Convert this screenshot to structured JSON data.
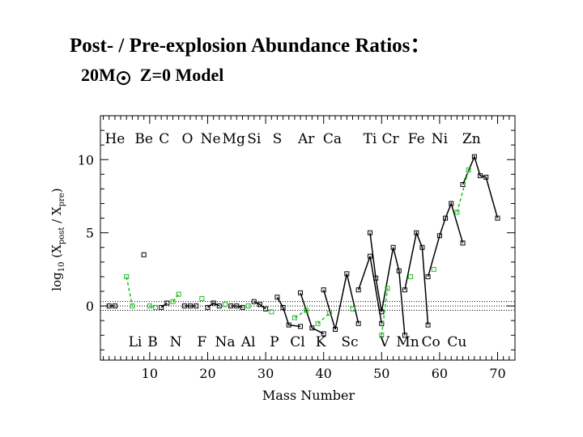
{
  "slide": {
    "title": "Post- / Pre-explosion Abundance Ratios：",
    "subtitle_prefix": "20M",
    "subtitle_suffix": "Z=0 Model"
  },
  "chart_data": {
    "type": "line",
    "xlabel": "Mass Number",
    "ylabel": "log10 (X_post / X_pre)",
    "xlim": [
      1.5,
      73
    ],
    "ylim": [
      -3.7,
      13
    ],
    "xticks": [
      10,
      20,
      30,
      40,
      50,
      60,
      70
    ],
    "yticks": [
      0,
      5,
      10
    ],
    "reference_lines_y": [
      -0.3,
      0,
      0.3
    ],
    "colors": {
      "even_z": "#000000",
      "odd_z": "#22bb22"
    },
    "even_z_labels": [
      {
        "text": "He",
        "x": 4
      },
      {
        "text": "Be",
        "x": 9
      },
      {
        "text": "C",
        "x": 12.5
      },
      {
        "text": "O",
        "x": 16.5
      },
      {
        "text": "Ne",
        "x": 20.5
      },
      {
        "text": "Mg",
        "x": 24.5
      },
      {
        "text": "Si",
        "x": 28
      },
      {
        "text": "S",
        "x": 32
      },
      {
        "text": "Ar",
        "x": 37
      },
      {
        "text": "Ca",
        "x": 41.5
      },
      {
        "text": "Ti",
        "x": 48
      },
      {
        "text": "Cr",
        "x": 51.5
      },
      {
        "text": "Fe",
        "x": 56
      },
      {
        "text": "Ni",
        "x": 60
      },
      {
        "text": "Zn",
        "x": 65.5
      }
    ],
    "odd_z_labels": [
      {
        "text": "Li",
        "x": 7.5
      },
      {
        "text": "B",
        "x": 10.5
      },
      {
        "text": "N",
        "x": 14.5
      },
      {
        "text": "F",
        "x": 19
      },
      {
        "text": "Na",
        "x": 23
      },
      {
        "text": "Al",
        "x": 27
      },
      {
        "text": "P",
        "x": 31.5
      },
      {
        "text": "Cl",
        "x": 35.5
      },
      {
        "text": "K",
        "x": 39.5
      },
      {
        "text": "Sc",
        "x": 44.5
      },
      {
        "text": "V",
        "x": 50.5
      },
      {
        "text": "Mn",
        "x": 54.5
      },
      {
        "text": "Co",
        "x": 58.5
      },
      {
        "text": "Cu",
        "x": 63
      }
    ],
    "series": [
      {
        "color": "#000000",
        "dash": "none",
        "segments": [
          [
            [
              3,
              0
            ],
            [
              4,
              0
            ]
          ],
          [
            [
              9,
              3.5
            ]
          ],
          [
            [
              12,
              -0.1
            ],
            [
              13,
              0.2
            ]
          ],
          [
            [
              16,
              0
            ],
            [
              17,
              0
            ],
            [
              18,
              0
            ]
          ],
          [
            [
              20,
              -0.1
            ],
            [
              21,
              0.2
            ],
            [
              22,
              0
            ]
          ],
          [
            [
              24,
              0
            ],
            [
              25,
              0
            ],
            [
              26,
              -0.1
            ]
          ],
          [
            [
              28,
              0.3
            ],
            [
              29,
              0.1
            ],
            [
              30,
              -0.2
            ]
          ],
          [
            [
              32,
              0.6
            ],
            [
              33,
              -0.1
            ],
            [
              34,
              -1.3
            ],
            [
              36,
              -1.4
            ]
          ],
          [
            [
              36,
              0.9
            ],
            [
              38,
              -1.5
            ],
            [
              40,
              -1.9
            ]
          ],
          [
            [
              40,
              1.1
            ],
            [
              42,
              -1.6
            ],
            [
              44,
              2.2
            ],
            [
              46,
              -1.2
            ]
          ],
          [
            [
              46,
              1.1
            ],
            [
              48,
              3.4
            ],
            [
              50,
              -1.2
            ]
          ],
          [
            [
              48,
              5
            ],
            [
              49,
              1.9
            ],
            [
              50,
              -0.4
            ],
            [
              52,
              4
            ],
            [
              53,
              2.4
            ],
            [
              54,
              -2
            ]
          ],
          [
            [
              54,
              1.1
            ],
            [
              56,
              5
            ],
            [
              57,
              4
            ],
            [
              58,
              -1.3
            ]
          ],
          [
            [
              58,
              2
            ],
            [
              60,
              4.8
            ],
            [
              61,
              6
            ],
            [
              62,
              7
            ],
            [
              64,
              4.3
            ]
          ],
          [
            [
              64,
              8.3
            ],
            [
              66,
              10.2
            ],
            [
              67,
              8.9
            ],
            [
              68,
              8.8
            ],
            [
              70,
              6
            ]
          ]
        ]
      },
      {
        "color": "#22bb22",
        "dash": "4,3",
        "segments": [
          [
            [
              6,
              2
            ],
            [
              7,
              0
            ]
          ],
          [
            [
              10,
              0
            ],
            [
              11,
              -0.1
            ]
          ],
          [
            [
              14,
              0.3
            ],
            [
              15,
              0.8
            ]
          ],
          [
            [
              19,
              0.5
            ]
          ],
          [
            [
              23,
              0.1
            ]
          ],
          [
            [
              27,
              0
            ]
          ],
          [
            [
              31,
              -0.4
            ]
          ],
          [
            [
              35,
              -0.8
            ],
            [
              37,
              -0.3
            ]
          ],
          [
            [
              39,
              -1.2
            ],
            [
              41,
              -0.5
            ]
          ],
          [
            [
              45,
              -0.2
            ]
          ],
          [
            [
              50,
              -2
            ],
            [
              51,
              1.2
            ]
          ],
          [
            [
              55,
              2
            ]
          ],
          [
            [
              59,
              2.5
            ]
          ],
          [
            [
              63,
              6.4
            ],
            [
              65,
              9.3
            ]
          ]
        ]
      }
    ]
  }
}
